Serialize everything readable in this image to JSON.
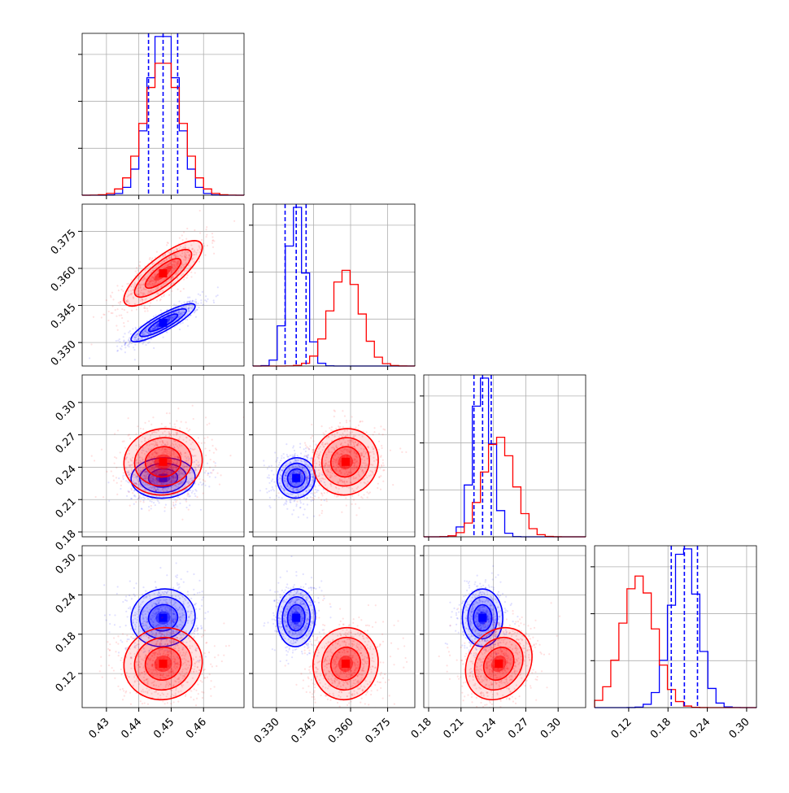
{
  "chart_data": {
    "type": "corner",
    "parameters": 4,
    "grid": true,
    "colors": {
      "a": "#0000ff",
      "b": "#ff0000"
    },
    "series": [
      {
        "key": "a",
        "color": "#0000ff",
        "median": [
          0.4475,
          0.338,
          0.23,
          0.205
        ],
        "sigma": [
          0.0045,
          0.0035,
          0.0085,
          0.02
        ],
        "corr": [
          0.87,
          0.1,
          0.0,
          0.0
        ]
      },
      {
        "key": "b",
        "color": "#ff0000",
        "median": [
          0.4475,
          0.358,
          0.245,
          0.135
        ],
        "sigma": [
          0.0055,
          0.006,
          0.014,
          0.025
        ],
        "corr": [
          0.8,
          0.1,
          0.0,
          0.2
        ]
      }
    ],
    "quantile_lines": [
      [
        0.443,
        0.4475,
        0.452
      ],
      [
        0.3335,
        0.338,
        0.342
      ],
      [
        0.222,
        0.23,
        0.238
      ],
      [
        0.185,
        0.205,
        0.225
      ]
    ],
    "ranges": [
      [
        0.4225,
        0.4725
      ],
      [
        0.3205,
        0.386
      ],
      [
        0.1755,
        0.3255
      ],
      [
        0.068,
        0.315
      ]
    ],
    "axes": [
      {
        "ticks": [
          0.43,
          0.44,
          0.45,
          0.46
        ],
        "tick_labels": [
          "0.43",
          "0.44",
          "0.45",
          "0.46"
        ]
      },
      {
        "ticks": [
          0.33,
          0.345,
          0.36,
          0.375
        ],
        "tick_labels": [
          "0.330",
          "0.345",
          "0.360",
          "0.375"
        ]
      },
      {
        "ticks": [
          0.18,
          0.21,
          0.24,
          0.27,
          0.3
        ],
        "tick_labels": [
          "0.18",
          "0.21",
          "0.24",
          "0.27",
          "0.30"
        ]
      },
      {
        "ticks": [
          0.12,
          0.18,
          0.24,
          0.3
        ],
        "tick_labels": [
          "0.12",
          "0.18",
          "0.24",
          "0.30"
        ]
      }
    ]
  }
}
